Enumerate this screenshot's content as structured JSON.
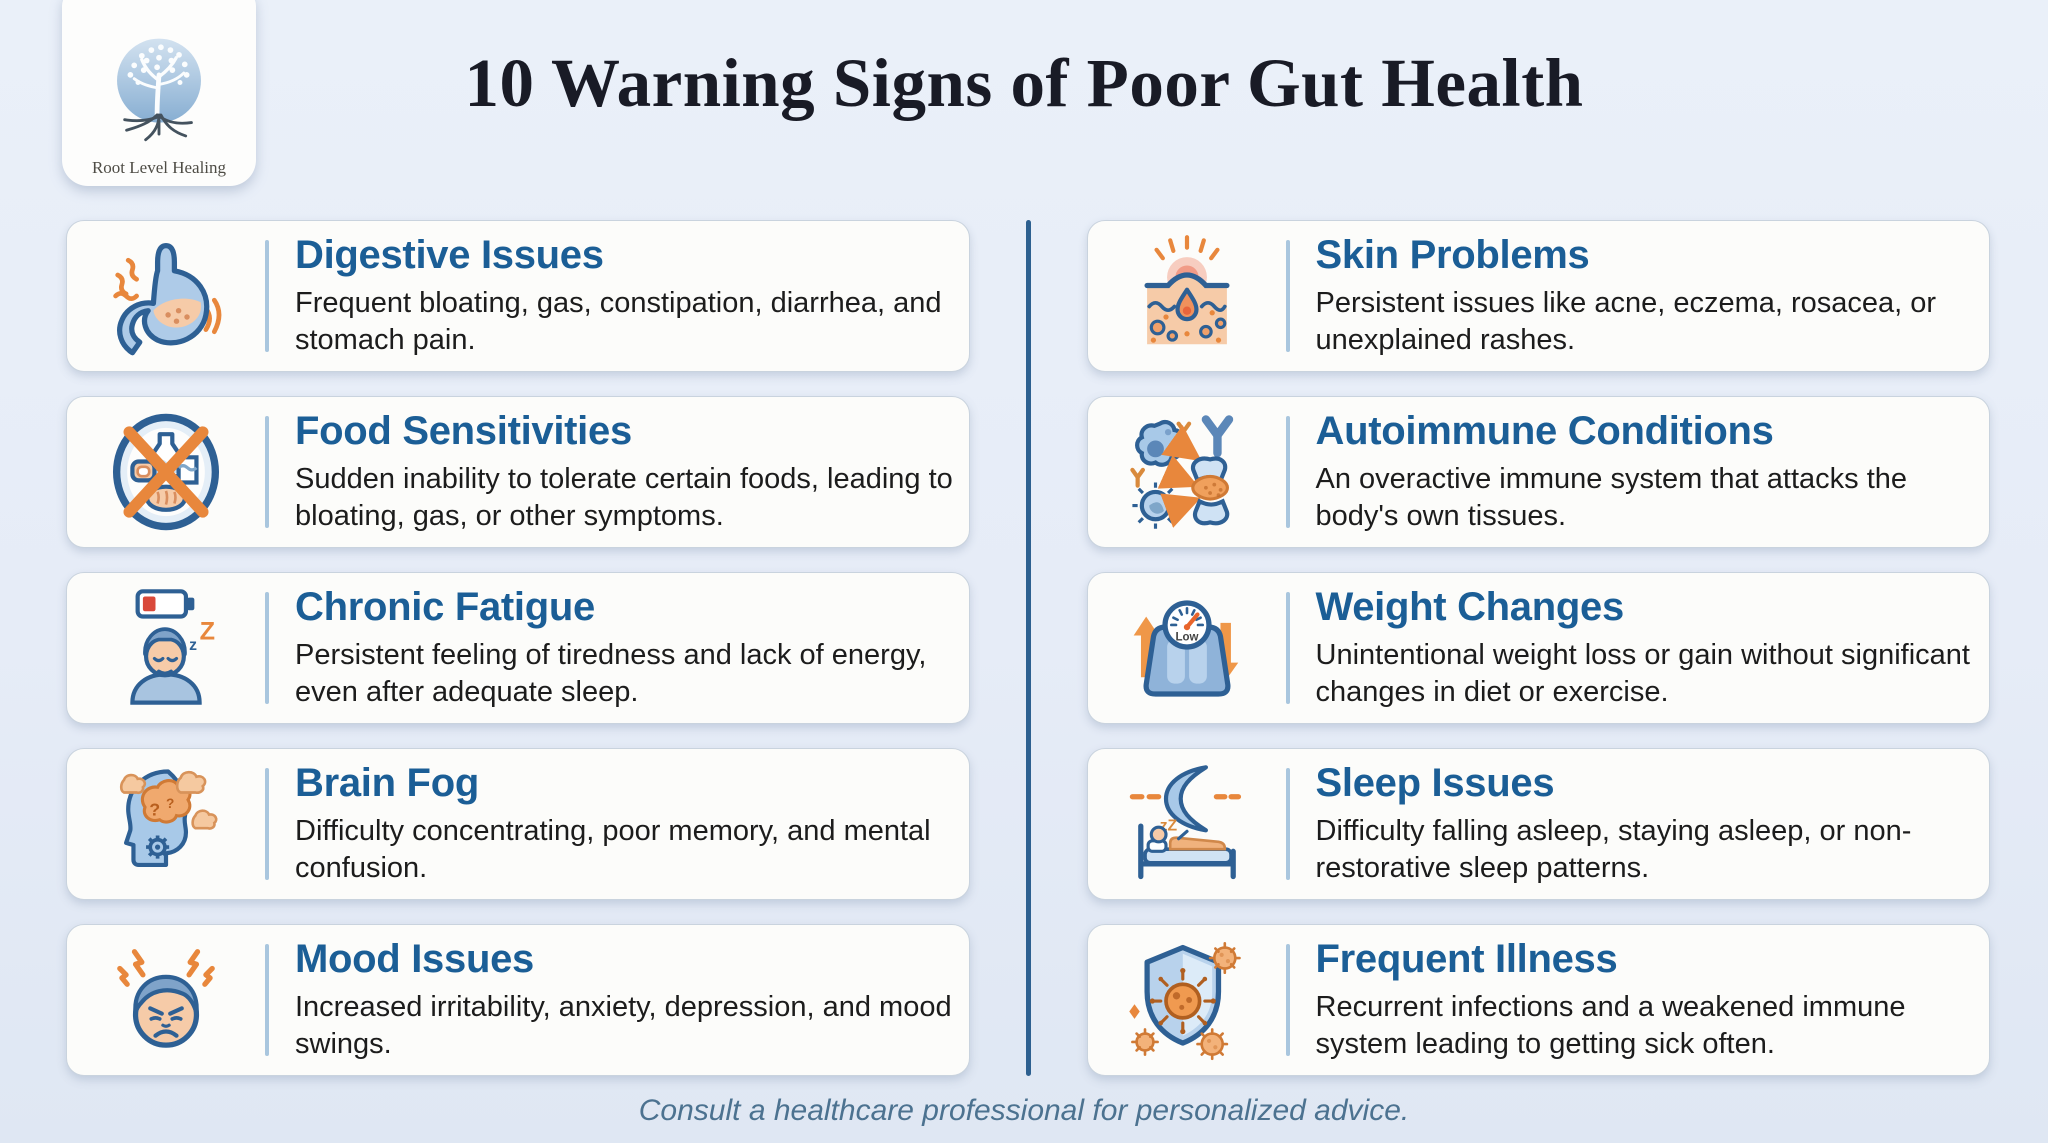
{
  "logo": {
    "brand": "Root Level Healing",
    "icon": "tree-roots-logo-icon"
  },
  "header": {
    "title": "10 Warning Signs of Poor Gut Health"
  },
  "footer": {
    "note": "Consult a healthcare professional for personalized advice."
  },
  "colors": {
    "background": "#e8eef7",
    "card_background": "#fcfcfa",
    "card_title_blue": "#1b5e96",
    "column_divider_blue": "#2d6090",
    "card_divider_blue": "#a9c6de",
    "accent_orange": "#e8873c",
    "icon_blue": "#a8c9e8",
    "icon_stroke_blue": "#2e6094",
    "body_text": "#1c1c1c",
    "footer_text": "#4c7290",
    "title_text": "#191b26"
  },
  "icons": {
    "scale_dial_label": "Low",
    "sleep_z": "zZ",
    "z_small": "z",
    "z_big": "Z",
    "question_mark_big": "?",
    "question_mark_small": "?"
  },
  "cards": [
    {
      "column": "left",
      "icon": "stomach-icon",
      "title": "Digestive Issues",
      "description": "Frequent bloating, gas, constipation, diarrhea, and stomach pain."
    },
    {
      "column": "left",
      "icon": "food-intolerance-icon",
      "title": "Food Sensitivities",
      "description": "Sudden inability to tolerate certain foods, leading to bloating, gas, or other symptoms."
    },
    {
      "column": "left",
      "icon": "low-battery-fatigue-icon",
      "title": "Chronic Fatigue",
      "description": "Persistent feeling of tiredness and lack of energy, even after adequate sleep."
    },
    {
      "column": "left",
      "icon": "brain-fog-icon",
      "title": "Brain Fog",
      "description": "Difficulty concentrating, poor memory, and mental confusion."
    },
    {
      "column": "left",
      "icon": "angry-face-icon",
      "title": "Mood Issues",
      "description": "Increased irritability, anxiety, depression, and mood swings."
    },
    {
      "column": "right",
      "icon": "skin-inflammation-icon",
      "title": "Skin Problems",
      "description": "Persistent issues like acne, eczema, rosacea, or unexplained rashes."
    },
    {
      "column": "right",
      "icon": "autoimmune-attack-icon",
      "title": "Autoimmune Conditions",
      "description": "An overactive immune system that attacks the body's own tissues."
    },
    {
      "column": "right",
      "icon": "weight-scale-icon",
      "title": "Weight Changes",
      "description": "Unintentional weight loss or gain without significant changes in diet or exercise."
    },
    {
      "column": "right",
      "icon": "moon-sleep-icon",
      "title": "Sleep Issues",
      "description": "Difficulty falling asleep, staying asleep, or non-restorative sleep patterns."
    },
    {
      "column": "right",
      "icon": "shield-virus-icon",
      "title": "Frequent Illness",
      "description": "Recurrent infections and a weakened immune system leading to getting sick often."
    }
  ]
}
